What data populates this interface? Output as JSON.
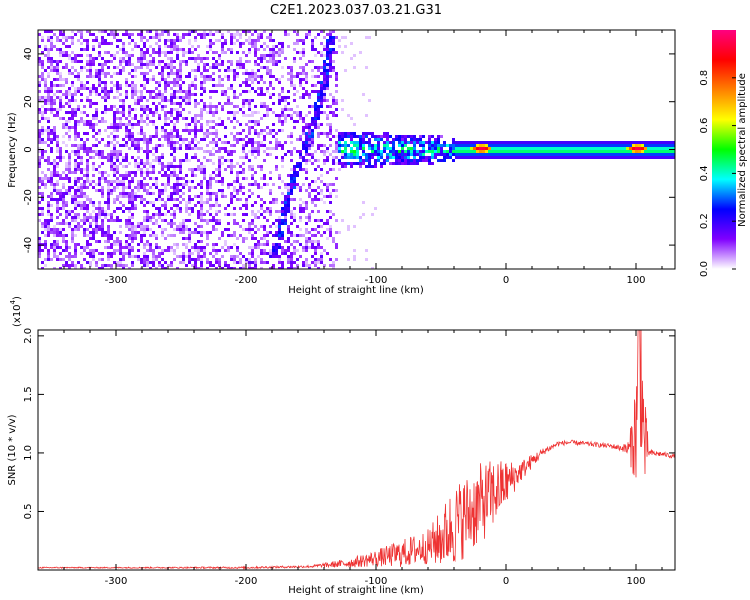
{
  "title": "C2E1.2023.037.03.21.G31",
  "chart_data": [
    {
      "type": "heatmap",
      "title": "C2E1.2023.037.03.21.G31",
      "xlabel": "Height of straight line (km)",
      "ylabel": "Frequency (Hz)",
      "xlim": [
        -360,
        130
      ],
      "ylim": [
        -50,
        50
      ],
      "x_ticks": [
        -300,
        -200,
        -100,
        0,
        100
      ],
      "y_ticks": [
        -40,
        -20,
        0,
        20,
        40
      ],
      "colorbar": {
        "label": "Normalized spectral amplitude",
        "range": [
          0,
          1
        ],
        "ticks": [
          "0.0",
          "0.2",
          "0.4",
          "0.6",
          "0.8"
        ],
        "colors": [
          "#ffffff",
          "#8000ff",
          "#0000ff",
          "#00ffff",
          "#00ff00",
          "#ffff00",
          "#ff8000",
          "#ff0000",
          "#ff0080"
        ]
      },
      "features": [
        {
          "desc": "noise band",
          "x_range": [
            -360,
            -130
          ],
          "y_range": [
            -50,
            50
          ],
          "amplitude": 0.05
        },
        {
          "desc": "diagonal trace",
          "points": [
            [
              -180,
              -45
            ],
            [
              -165,
              -12
            ],
            [
              -150,
              10
            ],
            [
              -140,
              30
            ],
            [
              -135,
              48
            ]
          ],
          "amplitude": 0.15
        },
        {
          "desc": "central tone",
          "x_range": [
            -130,
            130
          ],
          "y_center": 0,
          "amplitude": 0.45
        },
        {
          "desc": "peak",
          "x": -20,
          "y": 1,
          "amplitude": 0.95
        },
        {
          "desc": "peak",
          "x": 100,
          "y": 1,
          "amplitude": 0.95
        }
      ]
    },
    {
      "type": "line",
      "xlabel": "Height of straight line (km)",
      "ylabel": "SNR (10 * v/v)",
      "y_multiplier": "(x10",
      "y_multiplier_exp": "4",
      "y_multiplier_close": ")",
      "xlim": [
        -360,
        130
      ],
      "ylim": [
        0,
        2.05
      ],
      "x_ticks": [
        -300,
        -200,
        -100,
        0,
        100
      ],
      "y_ticks": [
        "0.5",
        "1.0",
        "1.5",
        "2.0"
      ],
      "line_color": "#ee3333",
      "x": [
        -360,
        -300,
        -250,
        -200,
        -150,
        -120,
        -100,
        -80,
        -60,
        -50,
        -40,
        -30,
        -20,
        -10,
        0,
        10,
        20,
        30,
        40,
        50,
        60,
        70,
        80,
        90,
        95,
        100,
        103,
        106,
        110,
        120,
        130
      ],
      "y": [
        0.02,
        0.02,
        0.02,
        0.02,
        0.03,
        0.06,
        0.1,
        0.14,
        0.2,
        0.27,
        0.38,
        0.47,
        0.56,
        0.65,
        0.74,
        0.83,
        0.93,
        1.02,
        1.08,
        1.09,
        1.08,
        1.07,
        1.06,
        1.04,
        1.03,
        1.2,
        2.0,
        1.1,
        1.0,
        0.99,
        0.97
      ],
      "noise": [
        0.005,
        0.005,
        0.006,
        0.008,
        0.01,
        0.04,
        0.07,
        0.12,
        0.15,
        0.25,
        0.35,
        0.35,
        0.35,
        0.3,
        0.2,
        0.1,
        0.06,
        0.03,
        0.02,
        0.02,
        0.02,
        0.02,
        0.02,
        0.03,
        0.1,
        0.5,
        0.9,
        0.5,
        0.03,
        0.02,
        0.02
      ]
    }
  ]
}
